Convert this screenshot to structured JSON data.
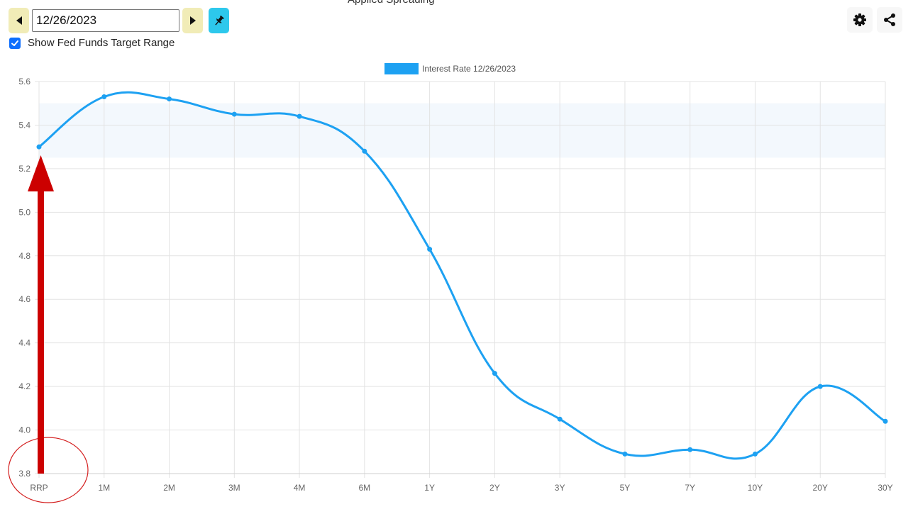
{
  "header": {
    "title": "Applied Spreading",
    "date_value": "12/26/2023",
    "show_fed_label": "Show Fed Funds Target Range",
    "show_fed_checked": true
  },
  "icons": {
    "prev": "caret-left-icon",
    "next": "caret-right-icon",
    "pin": "pin-icon",
    "settings": "gear-icon",
    "share": "share-icon",
    "checkbox": "check-icon"
  },
  "chart_data": {
    "type": "line",
    "categories": [
      "RRP",
      "1M",
      "2M",
      "3M",
      "4M",
      "6M",
      "1Y",
      "2Y",
      "3Y",
      "5Y",
      "7Y",
      "10Y",
      "20Y",
      "30Y"
    ],
    "series": [
      {
        "name": "Interest Rate 12/26/2023",
        "values": [
          5.3,
          5.53,
          5.52,
          5.45,
          5.44,
          5.28,
          4.83,
          4.26,
          4.05,
          3.89,
          3.91,
          3.89,
          4.2,
          4.04
        ],
        "color": "#1da1f2"
      }
    ],
    "ylim": [
      3.8,
      5.6
    ],
    "yticks": [
      "3.8",
      "4.0",
      "4.2",
      "4.4",
      "4.6",
      "4.8",
      "5.0",
      "5.2",
      "5.4",
      "5.6"
    ],
    "band": {
      "from": 5.25,
      "to": 5.5,
      "color": "#f3f8fd"
    },
    "grid": true,
    "legend_position": "top-center",
    "annotation_arrow_color": "#cc0000",
    "annotation_circle_color": "#d42020"
  }
}
